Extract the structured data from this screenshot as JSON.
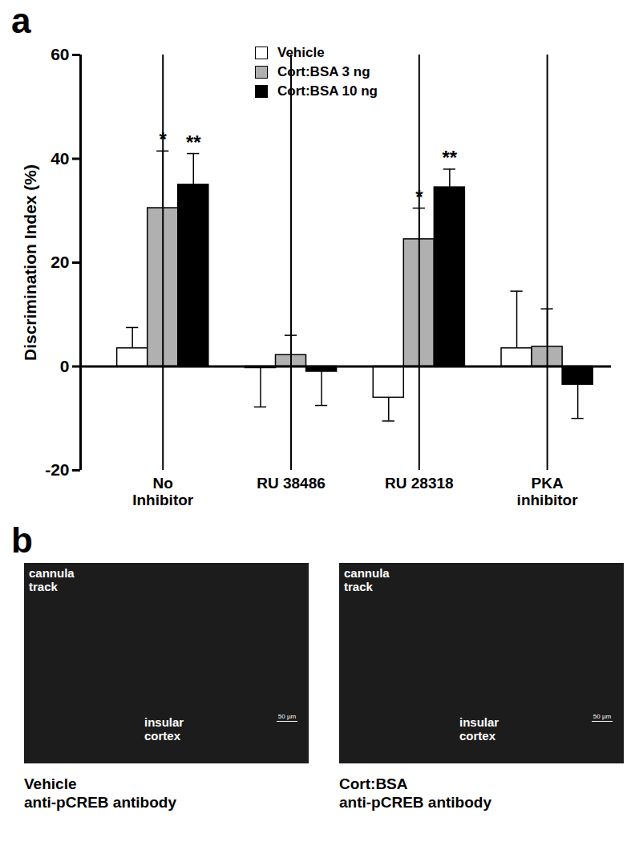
{
  "chart_data": {
    "type": "bar",
    "panel_label": "a",
    "categories": [
      "No\nInhibitor",
      "RU 38486",
      "RU 28318",
      "PKA\ninhibitor"
    ],
    "y_label": "Discrimination Index (%)",
    "ylim": [
      -20,
      60
    ],
    "yticks": [
      -20,
      0,
      20,
      40,
      60
    ],
    "legend": "top",
    "series": [
      {
        "name": "Vehicle",
        "color": "#ffffff",
        "values": [
          3.5,
          -0.3,
          -6,
          3.5
        ],
        "errors": [
          4,
          7.5,
          4.5,
          11
        ],
        "significance": [
          null,
          null,
          null,
          null
        ]
      },
      {
        "name": "Cort:BSA 3 ng",
        "color": "#b0b0b0",
        "values": [
          30.5,
          2.2,
          24.5,
          3.8
        ],
        "errors": [
          11,
          3.8,
          6,
          7.3
        ],
        "significance": [
          "*",
          null,
          "*",
          null
        ]
      },
      {
        "name": "Cort:BSA 10 ng",
        "color": "#000000",
        "values": [
          35,
          -1,
          34.5,
          -3.5
        ],
        "errors": [
          6,
          6.5,
          3.5,
          6.5
        ],
        "significance": [
          "**",
          null,
          "**",
          null
        ]
      }
    ]
  },
  "panel_b": {
    "panel_label": "b",
    "images": [
      {
        "top_left": "cannula\ntrack",
        "center": "insular\ncortex",
        "scale_bar": "50 µm",
        "caption": "Vehicle\nanti-pCREB antibody"
      },
      {
        "top_left": "cannula\ntrack",
        "center": "insular\ncortex",
        "scale_bar": "50 µm",
        "caption": "Cort:BSA\nanti-pCREB antibody"
      }
    ]
  }
}
